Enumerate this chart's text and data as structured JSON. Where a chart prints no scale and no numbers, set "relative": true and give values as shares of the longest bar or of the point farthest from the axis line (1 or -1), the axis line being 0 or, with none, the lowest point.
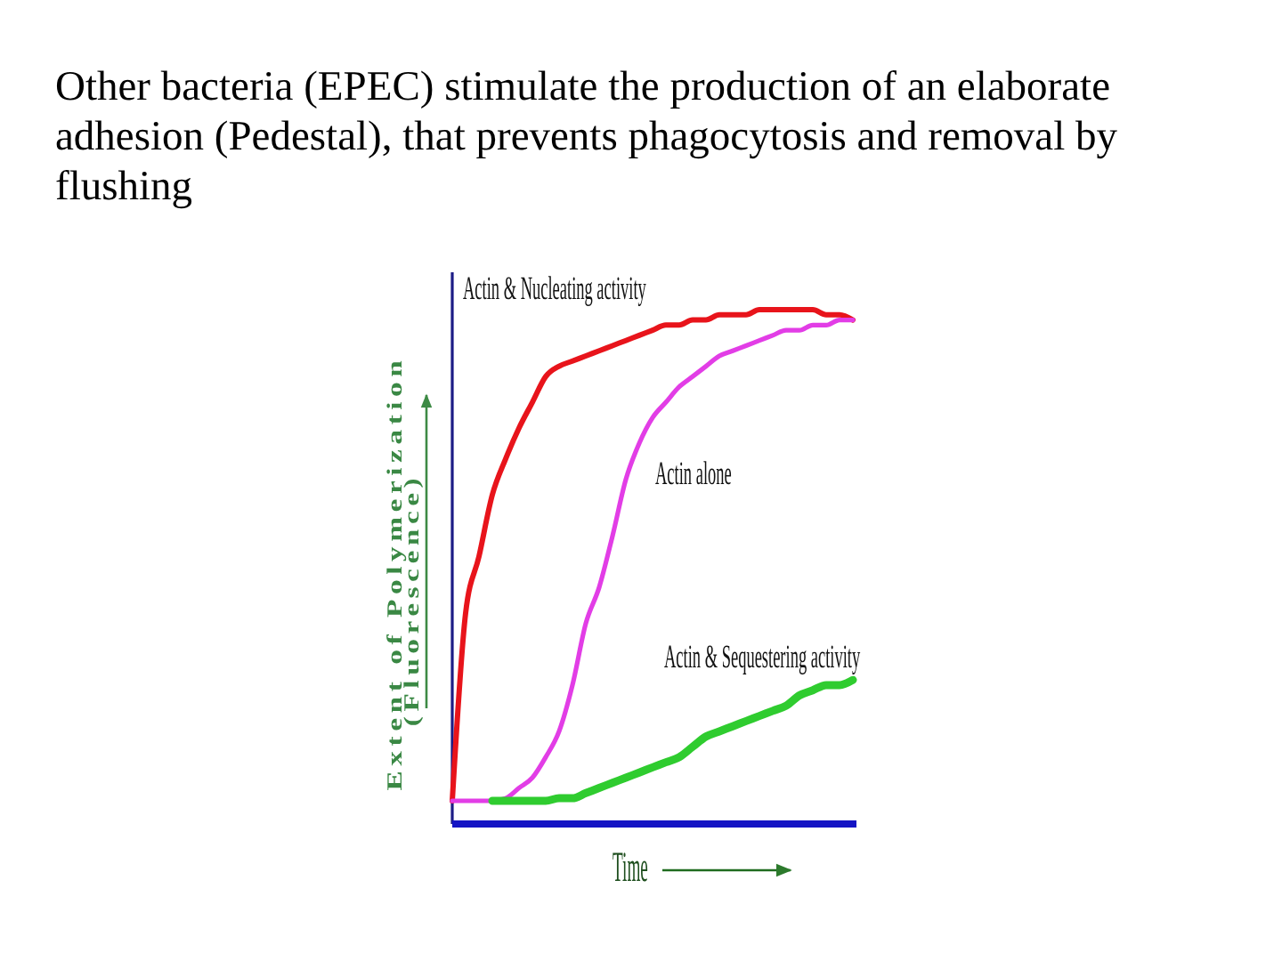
{
  "chart_data": {
    "type": "line",
    "title": "Other bacteria (EPEC) stimulate the production of an elaborate adhesion (Pedestal), that prevents phagocytosis and removal by flushing",
    "xlabel": "Time",
    "ylabel": "Extent of Polymerization (Fluorescence)",
    "relative": true,
    "categories": [
      null,
      null,
      null,
      null,
      null,
      null,
      null,
      null,
      null,
      null,
      null,
      null,
      null,
      null,
      null,
      null,
      null,
      null,
      null,
      null,
      null,
      null,
      null,
      null,
      null,
      null,
      null,
      null,
      null,
      null,
      null
    ],
    "series": [
      {
        "name": "Actin & Nucleating activity",
        "color": "#e8141b",
        "values": [
          0.045,
          0.41,
          0.52,
          0.64,
          0.71,
          0.77,
          0.82,
          0.87,
          0.89,
          0.9,
          0.91,
          0.92,
          0.93,
          0.94,
          0.95,
          0.96,
          0.97,
          0.97,
          0.98,
          0.98,
          0.99,
          0.99,
          0.99,
          1.0,
          1.0,
          1.0,
          1.0,
          1.0,
          0.99,
          0.99,
          0.98
        ]
      },
      {
        "name": "Actin alone",
        "color": "#e23de6",
        "values": [
          0.045,
          0.045,
          0.045,
          0.045,
          0.05,
          0.07,
          0.09,
          0.13,
          0.18,
          0.27,
          0.39,
          0.46,
          0.56,
          0.67,
          0.74,
          0.79,
          0.82,
          0.85,
          0.87,
          0.89,
          0.91,
          0.92,
          0.93,
          0.94,
          0.95,
          0.96,
          0.96,
          0.97,
          0.97,
          0.98,
          0.98
        ]
      },
      {
        "name": "Actin & Sequestering activity",
        "color": "#2fcc2f",
        "values": [
          null,
          null,
          null,
          0.045,
          0.045,
          0.045,
          0.045,
          0.045,
          0.05,
          0.05,
          0.06,
          0.07,
          0.08,
          0.09,
          0.1,
          0.11,
          0.12,
          0.13,
          0.15,
          0.17,
          0.18,
          0.19,
          0.2,
          0.21,
          0.22,
          0.23,
          0.25,
          0.26,
          0.27,
          0.27,
          0.28
        ]
      }
    ]
  }
}
